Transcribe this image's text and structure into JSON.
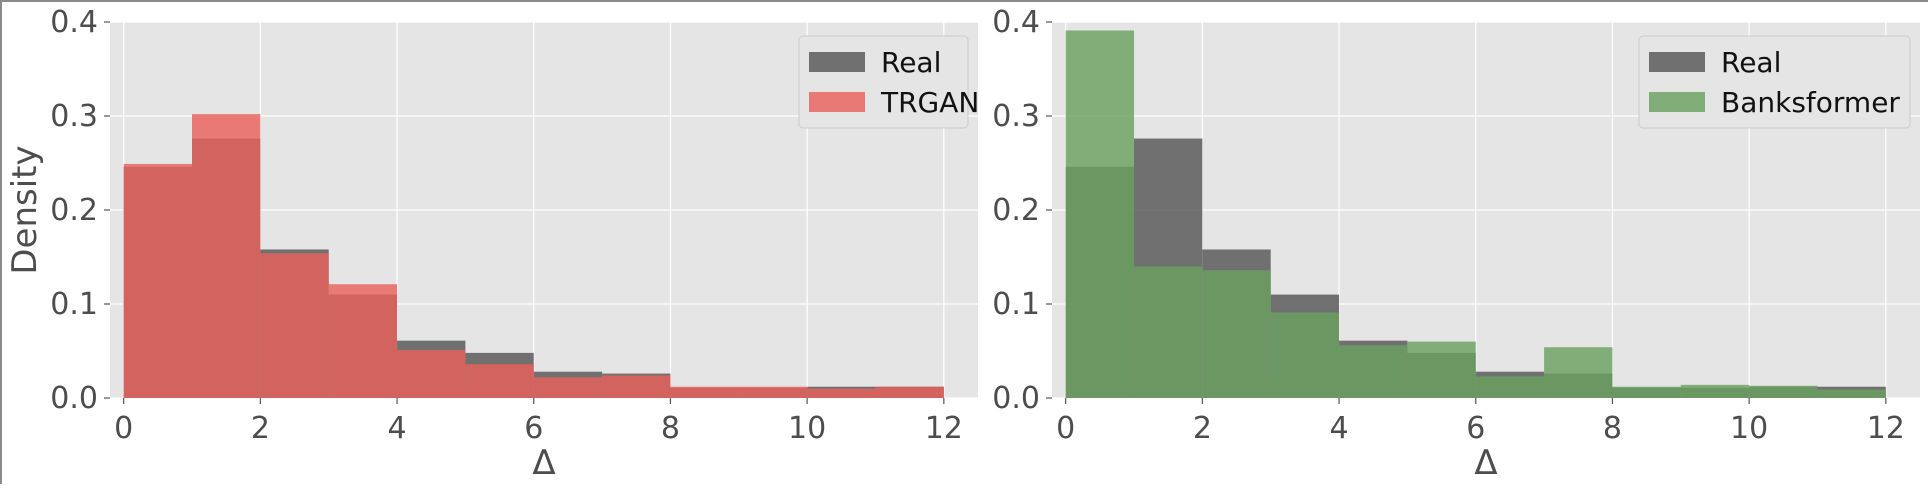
{
  "figure": {
    "ylabel": "Density"
  },
  "colors": {
    "real": "#555555",
    "trgan": "#e8605a",
    "banksformer": "#6aa060",
    "panel_bg": "#e5e5e5",
    "grid": "#ffffff"
  },
  "chart_data": [
    {
      "type": "bar",
      "xlabel": "Δ",
      "ylabel": "Density",
      "xlim": [
        -0.2,
        12.5
      ],
      "ylim": [
        0,
        0.4
      ],
      "xticks": [
        0,
        2,
        4,
        6,
        8,
        10,
        12
      ],
      "yticks": [
        0.0,
        0.1,
        0.2,
        0.3,
        0.4
      ],
      "xtick_labels": [
        "0",
        "2",
        "4",
        "6",
        "8",
        "10",
        "12"
      ],
      "ytick_labels": [
        "0.0",
        "0.1",
        "0.2",
        "0.3",
        "0.4"
      ],
      "grid": true,
      "legend_position": "top-right",
      "bin_edges": [
        0,
        1,
        2,
        3,
        4,
        5,
        6,
        7,
        8,
        9,
        10,
        11,
        12
      ],
      "series": [
        {
          "name": "Real",
          "color": "#555555",
          "values": [
            0.246,
            0.276,
            0.158,
            0.11,
            0.061,
            0.048,
            0.028,
            0.026,
            0.011,
            0.011,
            0.012,
            0.012
          ]
        },
        {
          "name": "TRGAN",
          "color": "#e8605a",
          "values": [
            0.249,
            0.302,
            0.154,
            0.121,
            0.051,
            0.036,
            0.022,
            0.024,
            0.012,
            0.012,
            0.01,
            0.012
          ]
        }
      ]
    },
    {
      "type": "bar",
      "xlabel": "Δ",
      "ylabel": "",
      "xlim": [
        -0.2,
        12.5
      ],
      "ylim": [
        0,
        0.4
      ],
      "xticks": [
        0,
        2,
        4,
        6,
        8,
        10,
        12
      ],
      "yticks": [
        0.0,
        0.1,
        0.2,
        0.3,
        0.4
      ],
      "xtick_labels": [
        "0",
        "2",
        "4",
        "6",
        "8",
        "10",
        "12"
      ],
      "ytick_labels": [
        "0.0",
        "0.1",
        "0.2",
        "0.3",
        "0.4"
      ],
      "grid": true,
      "legend_position": "top-right",
      "bin_edges": [
        0,
        1,
        2,
        3,
        4,
        5,
        6,
        7,
        8,
        9,
        10,
        11,
        12
      ],
      "series": [
        {
          "name": "Real",
          "color": "#555555",
          "values": [
            0.246,
            0.276,
            0.158,
            0.11,
            0.061,
            0.048,
            0.028,
            0.026,
            0.011,
            0.011,
            0.012,
            0.012
          ]
        },
        {
          "name": "Banksformer",
          "color": "#6aa060",
          "values": [
            0.391,
            0.14,
            0.136,
            0.091,
            0.056,
            0.06,
            0.023,
            0.054,
            0.012,
            0.014,
            0.013,
            0.009
          ]
        }
      ]
    }
  ]
}
